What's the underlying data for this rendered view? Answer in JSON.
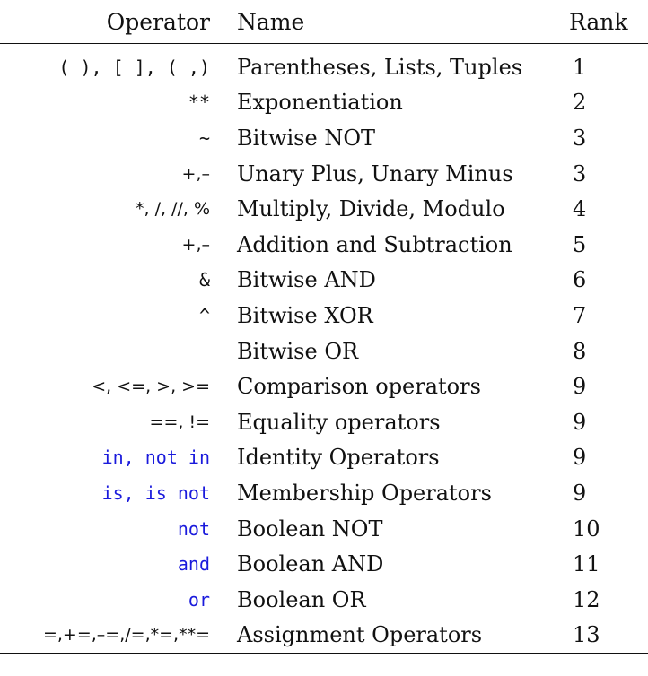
{
  "header": {
    "operator": "Operator",
    "name": "Name",
    "rank": "Rank"
  },
  "rows": [
    {
      "operator": "( ), [ ], ( ,)",
      "name": "Parentheses, Lists, Tuples",
      "rank": "1"
    },
    {
      "operator": "**",
      "name": "Exponentiation",
      "rank": "2"
    },
    {
      "operator": "~",
      "name": "Bitwise NOT",
      "rank": "3"
    },
    {
      "operator": "+,–",
      "name": "Unary Plus, Unary Minus",
      "rank": "3"
    },
    {
      "operator": "*, /, //, %",
      "name": "Multiply, Divide, Modulo",
      "rank": "4"
    },
    {
      "operator": "+,–",
      "name": "Addition and Subtraction",
      "rank": "5"
    },
    {
      "operator": "&",
      "name": "Bitwise AND",
      "rank": "6"
    },
    {
      "operator": "^",
      "name": "Bitwise XOR",
      "rank": "7"
    },
    {
      "operator": "",
      "name": "Bitwise OR",
      "rank": "8"
    },
    {
      "operator": "<, <=, >, >=",
      "name": "Comparison operators",
      "rank": "9"
    },
    {
      "operator": "==, !=",
      "name": "Equality operators",
      "rank": "9"
    },
    {
      "operator": "in, not in",
      "name": "Identity Operators",
      "rank": "9"
    },
    {
      "operator": "is, is not",
      "name": "Membership Operators",
      "rank": "9"
    },
    {
      "operator": "not",
      "name": "Boolean NOT",
      "rank": "10"
    },
    {
      "operator": "and",
      "name": "Boolean AND",
      "rank": "11"
    },
    {
      "operator": "or",
      "name": "Boolean OR",
      "rank": "12"
    },
    {
      "operator": "=,+=,–=,/=,*=,**=",
      "name": "Assignment Operators",
      "rank": "13"
    }
  ],
  "colors": {
    "keyword": "#1a1adc",
    "text": "#111111"
  }
}
